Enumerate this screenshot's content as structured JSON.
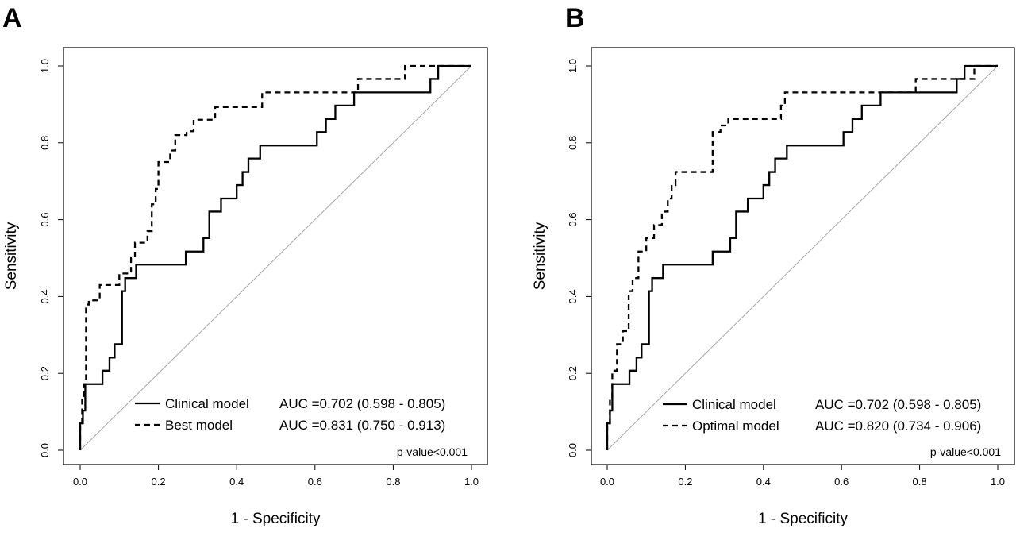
{
  "chart_data": [
    {
      "type": "line",
      "panel_label": "A",
      "xlabel": "1 - Specificity",
      "ylabel": "Sensitivity",
      "xlim": [
        0,
        1
      ],
      "ylim": [
        0,
        1
      ],
      "x_ticks": [
        "0.0",
        "0.2",
        "0.4",
        "0.6",
        "0.8",
        "1.0"
      ],
      "y_ticks": [
        "0.0",
        "0.2",
        "0.4",
        "0.6",
        "0.8",
        "1.0"
      ],
      "grid": false,
      "legend_position": "bottom-right",
      "annotation": "p-value<0.001",
      "series": [
        {
          "name": "Clinical model",
          "auc_label": "AUC =0.702 (0.598 - 0.805)",
          "style": "solid",
          "x": [
            0.0,
            0.0,
            0.007,
            0.007,
            0.013,
            0.013,
            0.02,
            0.02,
            0.057,
            0.057,
            0.075,
            0.075,
            0.088,
            0.088,
            0.1,
            0.1,
            0.107,
            0.107,
            0.115,
            0.115,
            0.143,
            0.143,
            0.27,
            0.27,
            0.315,
            0.315,
            0.33,
            0.33,
            0.34,
            0.34,
            0.36,
            0.36,
            0.385,
            0.385,
            0.4,
            0.4,
            0.415,
            0.415,
            0.43,
            0.43,
            0.46,
            0.46,
            0.605,
            0.605,
            0.628,
            0.628,
            0.652,
            0.652,
            0.665,
            0.665,
            0.7,
            0.7,
            0.895,
            0.895,
            0.915,
            0.915,
            1.0
          ],
          "y": [
            0.0,
            0.07,
            0.07,
            0.103,
            0.103,
            0.172,
            0.172,
            0.172,
            0.172,
            0.207,
            0.207,
            0.241,
            0.241,
            0.276,
            0.276,
            0.276,
            0.276,
            0.414,
            0.414,
            0.448,
            0.448,
            0.483,
            0.483,
            0.517,
            0.517,
            0.552,
            0.552,
            0.621,
            0.621,
            0.621,
            0.621,
            0.655,
            0.655,
            0.655,
            0.655,
            0.69,
            0.69,
            0.724,
            0.724,
            0.759,
            0.759,
            0.793,
            0.793,
            0.828,
            0.828,
            0.862,
            0.862,
            0.897,
            0.897,
            0.897,
            0.897,
            0.931,
            0.931,
            0.966,
            0.966,
            1.0,
            1.0
          ]
        },
        {
          "name": "Best model",
          "auc_label": "AUC =0.831 (0.750 - 0.913)",
          "style": "dashed",
          "x": [
            0.0,
            0.0,
            0.005,
            0.005,
            0.01,
            0.01,
            0.015,
            0.015,
            0.022,
            0.022,
            0.05,
            0.05,
            0.1,
            0.1,
            0.13,
            0.13,
            0.14,
            0.14,
            0.172,
            0.172,
            0.183,
            0.183,
            0.193,
            0.193,
            0.2,
            0.2,
            0.23,
            0.23,
            0.243,
            0.243,
            0.272,
            0.272,
            0.29,
            0.29,
            0.33,
            0.33,
            0.345,
            0.345,
            0.465,
            0.465,
            0.71,
            0.71,
            0.83,
            0.83,
            1.0
          ],
          "y": [
            0.0,
            0.07,
            0.07,
            0.138,
            0.138,
            0.172,
            0.172,
            0.379,
            0.379,
            0.39,
            0.39,
            0.43,
            0.43,
            0.46,
            0.46,
            0.5,
            0.5,
            0.54,
            0.54,
            0.57,
            0.57,
            0.64,
            0.64,
            0.68,
            0.68,
            0.75,
            0.75,
            0.78,
            0.78,
            0.82,
            0.82,
            0.83,
            0.83,
            0.86,
            0.86,
            0.86,
            0.86,
            0.893,
            0.893,
            0.931,
            0.931,
            0.966,
            0.966,
            1.0,
            1.0
          ]
        }
      ]
    },
    {
      "type": "line",
      "panel_label": "B",
      "xlabel": "1 - Specificity",
      "ylabel": "Sensitivity",
      "xlim": [
        0,
        1
      ],
      "ylim": [
        0,
        1
      ],
      "x_ticks": [
        "0.0",
        "0.2",
        "0.4",
        "0.6",
        "0.8",
        "1.0"
      ],
      "y_ticks": [
        "0.0",
        "0.2",
        "0.4",
        "0.6",
        "0.8",
        "1.0"
      ],
      "grid": false,
      "legend_position": "bottom-right",
      "annotation": "p-value<0.001",
      "series": [
        {
          "name": "Clinical model",
          "auc_label": "AUC =0.702 (0.598 - 0.805)",
          "style": "solid",
          "x": [
            0.0,
            0.0,
            0.007,
            0.007,
            0.013,
            0.013,
            0.02,
            0.02,
            0.057,
            0.057,
            0.075,
            0.075,
            0.088,
            0.088,
            0.1,
            0.1,
            0.107,
            0.107,
            0.115,
            0.115,
            0.143,
            0.143,
            0.27,
            0.27,
            0.315,
            0.315,
            0.33,
            0.33,
            0.34,
            0.34,
            0.36,
            0.36,
            0.385,
            0.385,
            0.4,
            0.4,
            0.415,
            0.415,
            0.43,
            0.43,
            0.46,
            0.46,
            0.605,
            0.605,
            0.628,
            0.628,
            0.652,
            0.652,
            0.665,
            0.665,
            0.7,
            0.7,
            0.895,
            0.895,
            0.915,
            0.915,
            1.0
          ],
          "y": [
            0.0,
            0.07,
            0.07,
            0.103,
            0.103,
            0.172,
            0.172,
            0.172,
            0.172,
            0.207,
            0.207,
            0.241,
            0.241,
            0.276,
            0.276,
            0.276,
            0.276,
            0.414,
            0.414,
            0.448,
            0.448,
            0.483,
            0.483,
            0.517,
            0.517,
            0.552,
            0.552,
            0.621,
            0.621,
            0.621,
            0.621,
            0.655,
            0.655,
            0.655,
            0.655,
            0.69,
            0.69,
            0.724,
            0.724,
            0.759,
            0.759,
            0.793,
            0.793,
            0.828,
            0.828,
            0.862,
            0.862,
            0.897,
            0.897,
            0.897,
            0.897,
            0.931,
            0.931,
            0.966,
            0.966,
            1.0,
            1.0
          ]
        },
        {
          "name": "Optimal model",
          "auc_label": "AUC =0.820 (0.734 - 0.906)",
          "style": "dashed",
          "x": [
            0.0,
            0.0,
            0.007,
            0.007,
            0.013,
            0.013,
            0.025,
            0.025,
            0.04,
            0.04,
            0.055,
            0.055,
            0.065,
            0.065,
            0.08,
            0.08,
            0.1,
            0.1,
            0.12,
            0.12,
            0.14,
            0.14,
            0.155,
            0.155,
            0.165,
            0.165,
            0.175,
            0.175,
            0.27,
            0.27,
            0.29,
            0.29,
            0.31,
            0.31,
            0.445,
            0.445,
            0.455,
            0.455,
            0.79,
            0.79,
            0.94,
            0.94,
            1.0
          ],
          "y": [
            0.0,
            0.07,
            0.07,
            0.138,
            0.138,
            0.207,
            0.207,
            0.276,
            0.276,
            0.31,
            0.31,
            0.414,
            0.414,
            0.448,
            0.448,
            0.517,
            0.517,
            0.552,
            0.552,
            0.586,
            0.586,
            0.621,
            0.621,
            0.655,
            0.655,
            0.69,
            0.69,
            0.724,
            0.724,
            0.828,
            0.828,
            0.845,
            0.845,
            0.862,
            0.862,
            0.897,
            0.897,
            0.931,
            0.931,
            0.966,
            0.966,
            1.0,
            1.0
          ]
        }
      ]
    }
  ]
}
